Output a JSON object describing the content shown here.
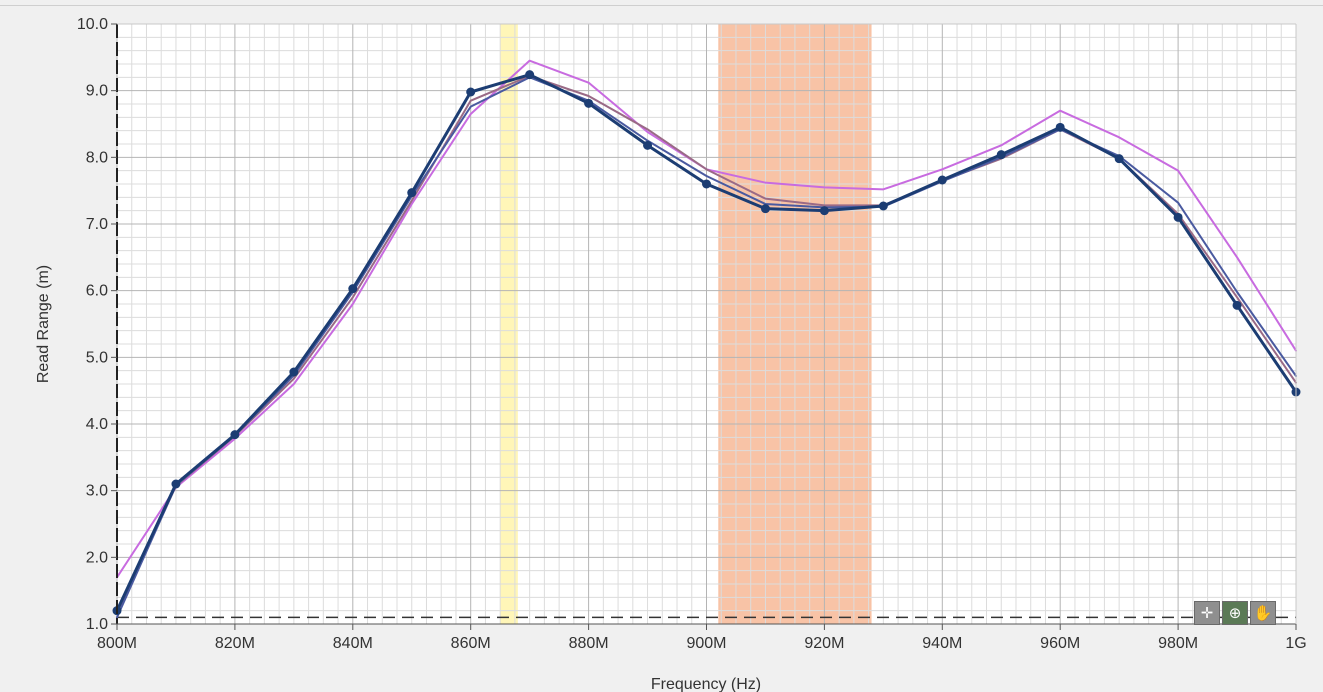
{
  "chart_data": {
    "type": "line",
    "xlabel": "Frequency (Hz)",
    "ylabel": "Read Range (m)",
    "xlim": [
      800,
      1000
    ],
    "ylim": [
      1.0,
      10.0
    ],
    "x_ticks": [
      {
        "v": 800,
        "label": "800M"
      },
      {
        "v": 820,
        "label": "820M"
      },
      {
        "v": 840,
        "label": "840M"
      },
      {
        "v": 860,
        "label": "860M"
      },
      {
        "v": 880,
        "label": "880M"
      },
      {
        "v": 900,
        "label": "900M"
      },
      {
        "v": 920,
        "label": "920M"
      },
      {
        "v": 940,
        "label": "940M"
      },
      {
        "v": 960,
        "label": "960M"
      },
      {
        "v": 980,
        "label": "980M"
      },
      {
        "v": 1000,
        "label": "1G"
      }
    ],
    "y_ticks": [
      {
        "v": 1,
        "label": "1.0"
      },
      {
        "v": 2,
        "label": "2.0"
      },
      {
        "v": 3,
        "label": "3.0"
      },
      {
        "v": 4,
        "label": "4.0"
      },
      {
        "v": 5,
        "label": "5.0"
      },
      {
        "v": 6,
        "label": "6.0"
      },
      {
        "v": 7,
        "label": "7.0"
      },
      {
        "v": 8,
        "label": "8.0"
      },
      {
        "v": 9,
        "label": "9.0"
      },
      {
        "v": 10,
        "label": "10.0"
      }
    ],
    "x": [
      800,
      810,
      820,
      830,
      840,
      850,
      860,
      870,
      880,
      890,
      900,
      910,
      920,
      930,
      940,
      950,
      960,
      970,
      980,
      990,
      1000
    ],
    "series": [
      {
        "color": "#c86be0",
        "width": 2,
        "markers": false,
        "values": [
          1.7,
          3.05,
          3.78,
          4.6,
          5.8,
          7.3,
          8.65,
          9.45,
          9.12,
          8.38,
          7.82,
          7.62,
          7.55,
          7.52,
          7.82,
          8.18,
          8.7,
          8.3,
          7.8,
          6.5,
          5.1
        ]
      },
      {
        "color": "#9a6a86",
        "width": 2,
        "markers": false,
        "values": [
          1.15,
          3.07,
          3.82,
          4.68,
          5.9,
          7.35,
          8.85,
          9.22,
          8.92,
          8.42,
          7.82,
          7.38,
          7.28,
          7.28,
          7.65,
          7.98,
          8.42,
          7.98,
          7.15,
          5.9,
          4.62
        ]
      },
      {
        "color": "#4a5aa0",
        "width": 2,
        "markers": false,
        "values": [
          1.1,
          3.08,
          3.83,
          4.73,
          5.98,
          7.42,
          8.76,
          9.2,
          8.85,
          8.25,
          7.72,
          7.3,
          7.25,
          7.26,
          7.64,
          8.0,
          8.42,
          8.02,
          7.32,
          5.98,
          4.72
        ]
      },
      {
        "color": "#1c3d73",
        "width": 3,
        "markers": true,
        "values": [
          1.2,
          3.1,
          3.84,
          4.78,
          6.03,
          7.47,
          8.98,
          9.24,
          8.81,
          8.18,
          7.6,
          7.23,
          7.2,
          7.27,
          7.66,
          8.04,
          8.45,
          7.98,
          7.1,
          5.78,
          4.48
        ]
      }
    ],
    "bands": [
      {
        "x0": 865,
        "x1": 868,
        "color": "#fff6b8"
      },
      {
        "x0": 902,
        "x1": 928,
        "color": "#f8c3a6"
      }
    ],
    "threshold": {
      "y": 1.1,
      "color": "#333333"
    },
    "grid": true
  },
  "palette": {
    "crosshair_icon": "✛",
    "zoom_icon": "⊕",
    "pan_icon": "✋"
  }
}
